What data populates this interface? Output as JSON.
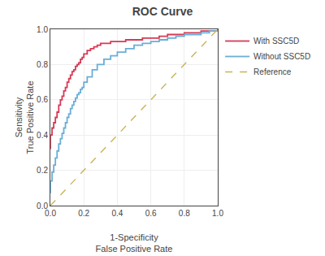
{
  "chart_data": {
    "type": "line",
    "title": "ROC Curve",
    "xlabel": "1-Specificity\nFalse Positive Rate",
    "ylabel": "Sensitivity\nTrue Positive Rate",
    "xlim": [
      0.0,
      1.0
    ],
    "ylim": [
      0.0,
      1.0
    ],
    "xticks": [
      {
        "value": 0.0,
        "label": "0.0"
      },
      0.2,
      0.4,
      0.6,
      0.8,
      {
        "value": 1.0,
        "label": "1.0"
      }
    ],
    "yticks": [
      {
        "value": 0.0,
        "label": "0.0"
      },
      0.2,
      0.4,
      0.6,
      0.8,
      {
        "value": 1.0,
        "label": "1.0"
      }
    ],
    "grid": true,
    "legend": "right",
    "series": [
      {
        "name": "With SSC5D",
        "type": "step",
        "color": "#d63a55",
        "line_style": "solid",
        "x": [
          0.0,
          0.0,
          0.01,
          0.01,
          0.02,
          0.02,
          0.03,
          0.03,
          0.04,
          0.04,
          0.05,
          0.05,
          0.06,
          0.06,
          0.07,
          0.07,
          0.08,
          0.08,
          0.09,
          0.09,
          0.1,
          0.1,
          0.11,
          0.11,
          0.12,
          0.12,
          0.13,
          0.13,
          0.14,
          0.14,
          0.15,
          0.15,
          0.16,
          0.16,
          0.17,
          0.17,
          0.18,
          0.18,
          0.19,
          0.19,
          0.2,
          0.2,
          0.22,
          0.22,
          0.24,
          0.24,
          0.26,
          0.26,
          0.28,
          0.28,
          0.3,
          0.3,
          0.33,
          0.33,
          0.36,
          0.36,
          0.4,
          0.4,
          0.45,
          0.45,
          0.5,
          0.5,
          0.55,
          0.55,
          0.6,
          0.6,
          0.65,
          0.65,
          0.7,
          0.7,
          0.75,
          0.75,
          0.8,
          0.8,
          0.85,
          0.85,
          0.9,
          0.9,
          0.95,
          0.95,
          1.0
        ],
        "values": [
          0.32,
          0.4,
          0.4,
          0.44,
          0.44,
          0.47,
          0.47,
          0.5,
          0.5,
          0.53,
          0.53,
          0.57,
          0.57,
          0.6,
          0.6,
          0.62,
          0.62,
          0.65,
          0.65,
          0.67,
          0.67,
          0.7,
          0.7,
          0.72,
          0.72,
          0.74,
          0.74,
          0.76,
          0.76,
          0.77,
          0.77,
          0.79,
          0.79,
          0.8,
          0.8,
          0.81,
          0.81,
          0.83,
          0.83,
          0.84,
          0.84,
          0.86,
          0.86,
          0.88,
          0.88,
          0.89,
          0.89,
          0.9,
          0.9,
          0.91,
          0.91,
          0.92,
          0.92,
          0.92,
          0.92,
          0.93,
          0.93,
          0.93,
          0.93,
          0.94,
          0.94,
          0.94,
          0.94,
          0.95,
          0.95,
          0.95,
          0.95,
          0.96,
          0.96,
          0.97,
          0.97,
          0.97,
          0.97,
          0.98,
          0.98,
          0.98,
          0.98,
          0.99,
          0.99,
          0.99,
          1.0
        ]
      },
      {
        "name": "Without SSC5D",
        "type": "step",
        "color": "#6aaed6",
        "line_style": "solid",
        "x": [
          0.0,
          0.0,
          0.01,
          0.01,
          0.02,
          0.02,
          0.03,
          0.03,
          0.04,
          0.04,
          0.05,
          0.05,
          0.06,
          0.06,
          0.07,
          0.07,
          0.08,
          0.08,
          0.09,
          0.09,
          0.1,
          0.1,
          0.11,
          0.11,
          0.12,
          0.12,
          0.13,
          0.13,
          0.14,
          0.14,
          0.15,
          0.15,
          0.16,
          0.16,
          0.17,
          0.17,
          0.18,
          0.18,
          0.19,
          0.19,
          0.2,
          0.2,
          0.22,
          0.22,
          0.25,
          0.25,
          0.28,
          0.28,
          0.32,
          0.32,
          0.36,
          0.36,
          0.4,
          0.4,
          0.45,
          0.45,
          0.5,
          0.5,
          0.55,
          0.55,
          0.6,
          0.6,
          0.65,
          0.65,
          0.7,
          0.7,
          0.75,
          0.75,
          0.8,
          0.8,
          0.85,
          0.85,
          0.9,
          0.9,
          0.95,
          0.95,
          1.0
        ],
        "values": [
          0.07,
          0.14,
          0.14,
          0.19,
          0.19,
          0.23,
          0.23,
          0.27,
          0.27,
          0.31,
          0.31,
          0.35,
          0.35,
          0.38,
          0.38,
          0.41,
          0.41,
          0.44,
          0.44,
          0.47,
          0.47,
          0.5,
          0.5,
          0.52,
          0.52,
          0.55,
          0.55,
          0.57,
          0.57,
          0.59,
          0.59,
          0.61,
          0.61,
          0.63,
          0.63,
          0.64,
          0.64,
          0.66,
          0.66,
          0.67,
          0.67,
          0.7,
          0.7,
          0.73,
          0.73,
          0.77,
          0.77,
          0.8,
          0.8,
          0.83,
          0.83,
          0.85,
          0.85,
          0.87,
          0.87,
          0.89,
          0.89,
          0.91,
          0.91,
          0.92,
          0.92,
          0.93,
          0.93,
          0.94,
          0.94,
          0.95,
          0.95,
          0.96,
          0.96,
          0.97,
          0.97,
          0.97,
          0.97,
          0.98,
          0.98,
          0.99,
          1.0
        ]
      },
      {
        "name": "Reference",
        "type": "line",
        "color": "#c8b45a",
        "line_style": "dashed",
        "x": [
          0,
          1
        ],
        "values": [
          0,
          1
        ]
      }
    ]
  }
}
